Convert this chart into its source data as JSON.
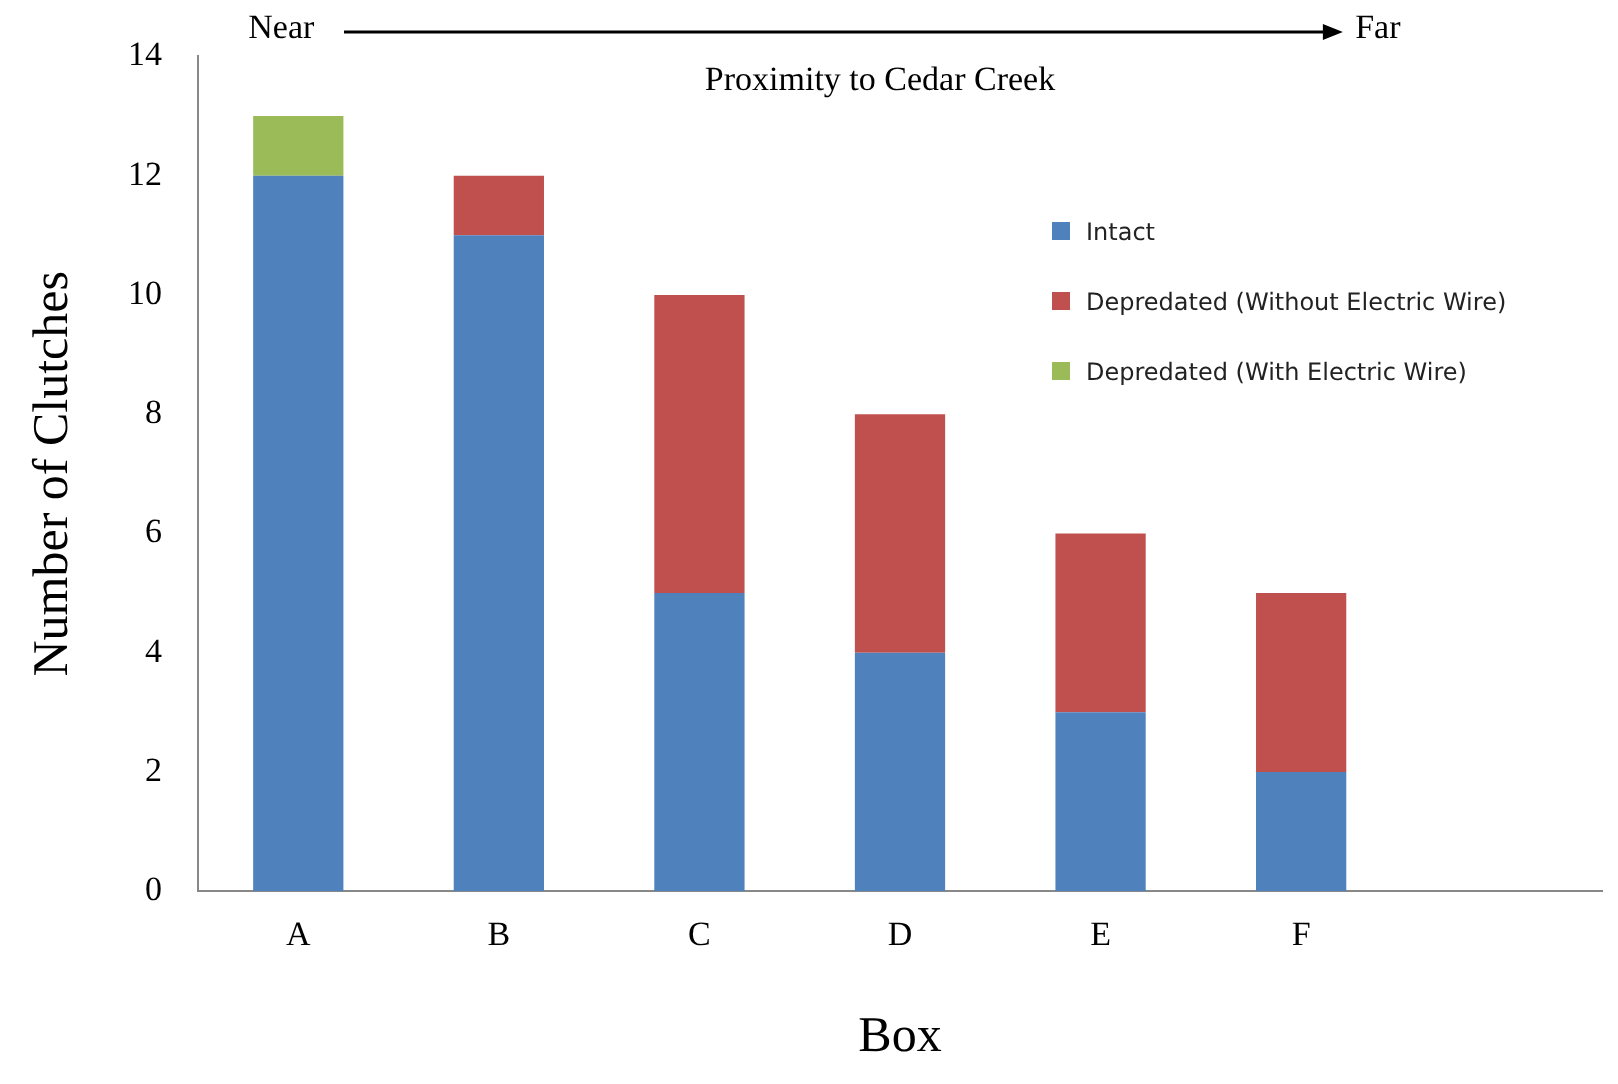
{
  "chart_data": {
    "type": "bar",
    "stacked": true,
    "xlabel": "Box",
    "ylabel": "Number of Clutches",
    "categories": [
      "A",
      "B",
      "C",
      "D",
      "E",
      "F",
      null
    ],
    "series": [
      {
        "name": "Intact",
        "color": "#4f81bd",
        "values": [
          12,
          11,
          5,
          4,
          3,
          2,
          null
        ]
      },
      {
        "name": "Depredated (Without Electric Wire)",
        "color": "#c0504d",
        "values": [
          0,
          1,
          5,
          4,
          3,
          3,
          null
        ]
      },
      {
        "name": "Depredated (With Electric Wire)",
        "color": "#9bbb59",
        "values": [
          1,
          0,
          0,
          0,
          0,
          0,
          null
        ]
      }
    ],
    "ylim": [
      0,
      14
    ],
    "yticks": [
      0,
      2,
      4,
      6,
      8,
      10,
      12,
      14
    ],
    "grid": false,
    "legend": "right",
    "annotations": [
      "Near",
      "Far",
      "Proximity to Cedar Creek"
    ]
  }
}
